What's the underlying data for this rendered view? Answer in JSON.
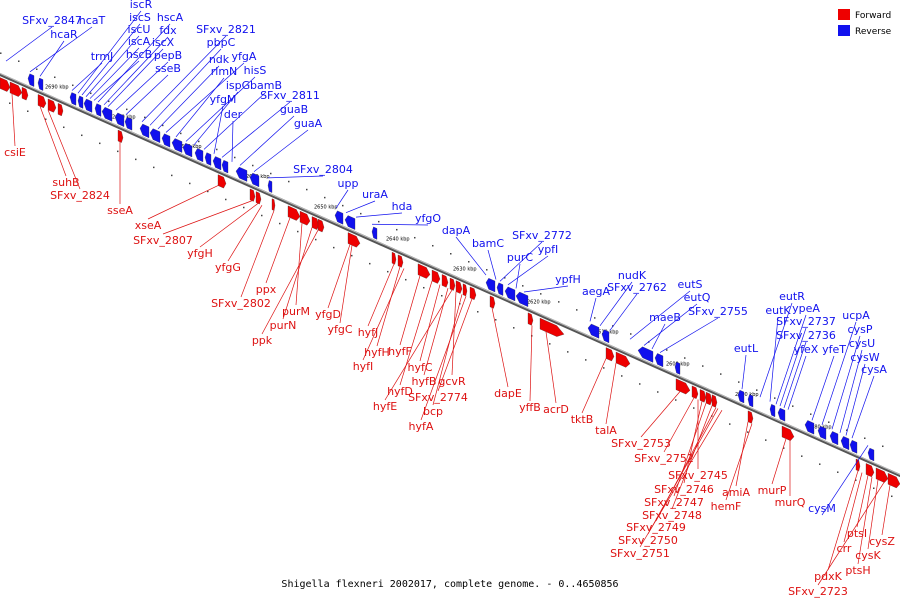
{
  "caption": "Shigella flexneri 2002017, complete genome. - 0..4650856",
  "legend": [
    {
      "label": "Forward",
      "color": "#ee0000"
    },
    {
      "label": "Reverse",
      "color": "#1111ee"
    }
  ],
  "ticks": [
    "2690 kbp",
    "2680 kbp",
    "2670 kbp",
    "2660 kbp",
    "2650 kbp",
    "2640 kbp",
    "2630 kbp",
    "2620 kbp",
    "2610 kbp",
    "2600 kbp",
    "2590 kbp",
    "2580 kbp"
  ],
  "reverse_labels": [
    "SFxv_2847",
    "hcaT",
    "hcaR",
    "trmJ",
    "iscR",
    "iscS",
    "iscU",
    "iscA",
    "hscB",
    "hscA",
    "fdx",
    "iscX",
    "pepB",
    "sseB",
    "SFxv_2821",
    "pbpC",
    "ndk",
    "yfgA",
    "rlmN",
    "hisS",
    "ispG",
    "bamB",
    "yfgM",
    "SFxv_2811",
    "der",
    "guaB",
    "guaA",
    "SFxv_2804",
    "upp",
    "uraA",
    "hda",
    "yfgO",
    "dapA",
    "bamC",
    "SFxv_2772",
    "ypfI",
    "purC",
    "ypfH",
    "aegA",
    "nudK",
    "SFxv_2762",
    "eutS",
    "eutQ",
    "maeB",
    "SFxv_2755",
    "eutL",
    "eutR",
    "eutK",
    "ypeA",
    "SFxv_2737",
    "SFxv_2736",
    "yfeX",
    "yfeT",
    "ucpA",
    "cysP",
    "cysU",
    "cysW",
    "cysA",
    "cysM"
  ],
  "forward_labels": [
    "csiE",
    "suhB",
    "SFxv_2824",
    "sseA",
    "xseA",
    "SFxv_2807",
    "yfgH",
    "yfgG",
    "SFxv_2802",
    "ppx",
    "purM",
    "purN",
    "ppk",
    "yfgD",
    "yfgC",
    "hyfJ",
    "hyfH",
    "hyfF",
    "hyfI",
    "hyfD",
    "hyfC",
    "hyfB",
    "hyfE",
    "gcvR",
    "bcp",
    "hyfA",
    "SFxv_2774",
    "dapE",
    "yffB",
    "acrD",
    "tktB",
    "talA",
    "SFxv_2753",
    "SFxv_2752",
    "SFxv_2745",
    "SFxv_2746",
    "SFxv_2747",
    "SFxv_2748",
    "SFxv_2749",
    "SFxv_2750",
    "SFxv_2751",
    "amiA",
    "hemF",
    "murP",
    "murQ",
    "pdxK",
    "crr",
    "ptsI",
    "ptsH",
    "cysK",
    "cysZ",
    "SFxv_2723"
  ]
}
